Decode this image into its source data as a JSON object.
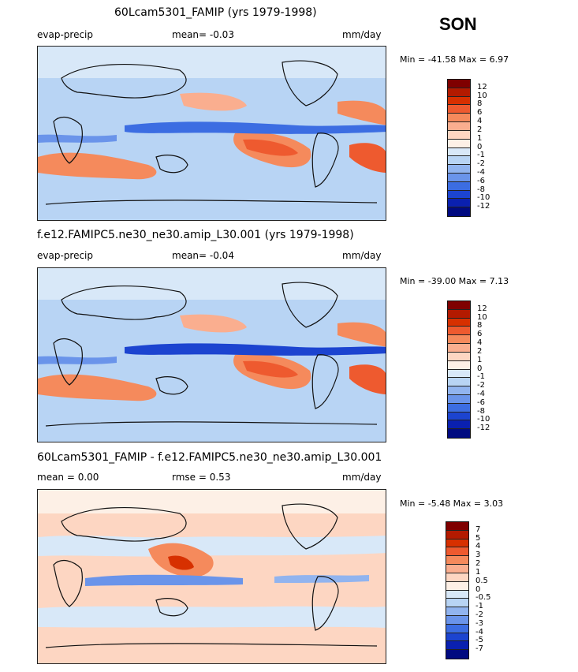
{
  "season": "SON",
  "panels": [
    {
      "title": "60Lcam5301_FAMIP (yrs 1979-1998)",
      "left_label": "evap-precip",
      "center_label": "mean=   -0.03",
      "right_label": "mm/day",
      "minmax": "Min = -41.58 Max =   6.97"
    },
    {
      "title": "f.e12.FAMIPC5.ne30_ne30.amip_L30.001 (yrs 1979-1998)",
      "left_label": "evap-precip",
      "center_label": "mean=   -0.04",
      "right_label": "mm/day",
      "minmax": "Min = -39.00 Max =   7.13"
    },
    {
      "title": "60Lcam5301_FAMIP - f.e12.FAMIPC5.ne30_ne30.amip_L30.001",
      "left_label": "mean =    0.00",
      "center_label": "rmse =    0.53",
      "right_label": "mm/day",
      "minmax": "Min = -5.48 Max =   3.03"
    }
  ],
  "colors": {
    "palette": [
      "#7f0000",
      "#b31a00",
      "#d73000",
      "#ee5a2f",
      "#f58a5c",
      "#faae8f",
      "#fdd6c2",
      "#fdf0e6",
      "#d8e8f8",
      "#b8d4f4",
      "#91b4ef",
      "#6a94ea",
      "#3c6de2",
      "#1c44d0",
      "#0a20b0",
      "#000a80"
    ],
    "land_outline": "#111111"
  },
  "chart_data": [
    {
      "type": "heatmap",
      "title": "60Lcam5301_FAMIP (yrs 1979-1998)",
      "variable": "evap-precip",
      "units": "mm/day",
      "mean": -0.03,
      "min": -41.58,
      "max": 6.97,
      "colorbar_levels": [
        "12",
        "10",
        "8",
        "6",
        "4",
        "2",
        "1",
        "0",
        "-1",
        "-2",
        "-4",
        "-6",
        "-8",
        "-10",
        "-12"
      ]
    },
    {
      "type": "heatmap",
      "title": "f.e12.FAMIPC5.ne30_ne30.amip_L30.001 (yrs 1979-1998)",
      "variable": "evap-precip",
      "units": "mm/day",
      "mean": -0.04,
      "min": -39.0,
      "max": 7.13,
      "colorbar_levels": [
        "12",
        "10",
        "8",
        "6",
        "4",
        "2",
        "1",
        "0",
        "-1",
        "-2",
        "-4",
        "-6",
        "-8",
        "-10",
        "-12"
      ]
    },
    {
      "type": "heatmap",
      "title": "60Lcam5301_FAMIP - f.e12.FAMIPC5.ne30_ne30.amip_L30.001",
      "variable": "difference",
      "units": "mm/day",
      "mean": 0.0,
      "rmse": 0.53,
      "min": -5.48,
      "max": 3.03,
      "colorbar_levels": [
        "7",
        "5",
        "4",
        "3",
        "2",
        "1",
        "0.5",
        "0",
        "-0.5",
        "-1",
        "-2",
        "-3",
        "-4",
        "-5",
        "-7"
      ]
    }
  ]
}
